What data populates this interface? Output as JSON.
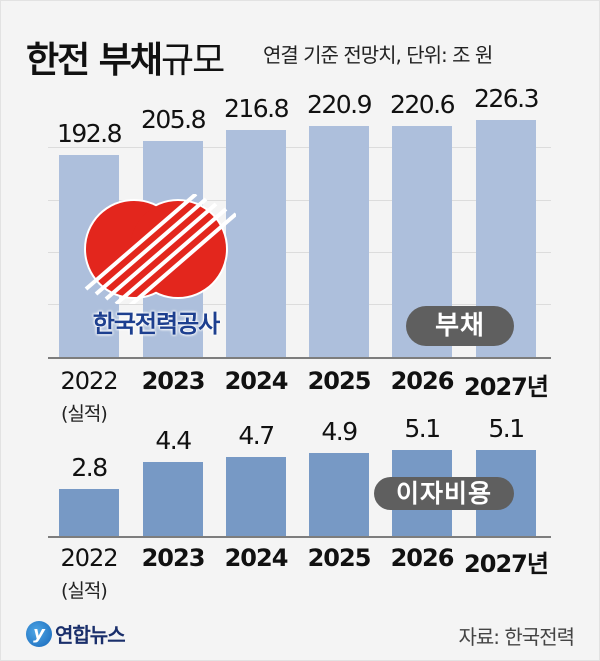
{
  "header": {
    "title_bold": "한전 부채",
    "title_light": "규모",
    "subtitle": "연결 기준 전망치, 단위: 조 원"
  },
  "logo": {
    "kepco_name": "한국전력공사",
    "kepco_colors": {
      "red": "#e3261d",
      "blue": "#1d3f8f"
    }
  },
  "footer": {
    "brand": "연합뉴스",
    "brand_mark": "y",
    "source": "자료: 한국전력"
  },
  "chart_data": [
    {
      "type": "bar",
      "title": "부채",
      "categories": [
        "2022",
        "2023",
        "2024",
        "2025",
        "2026",
        "2027년"
      ],
      "category_notes": {
        "2022": "(실적)"
      },
      "values": [
        192.8,
        205.8,
        216.8,
        220.9,
        220.6,
        226.3
      ],
      "value_labels": [
        "192.8",
        "205.8",
        "216.8",
        "220.9",
        "220.6",
        "226.3"
      ],
      "unit": "조 원",
      "series_label": "부채",
      "color": "#adbfdc",
      "grid": true,
      "legend_position": "inside-right badge"
    },
    {
      "type": "bar",
      "title": "이자비용",
      "categories": [
        "2022",
        "2023",
        "2024",
        "2025",
        "2026",
        "2027년"
      ],
      "category_notes": {
        "2022": "(실적)"
      },
      "values": [
        2.8,
        4.4,
        4.7,
        4.9,
        5.1,
        5.1
      ],
      "value_labels": [
        "2.8",
        "4.4",
        "4.7",
        "4.9",
        "5.1",
        "5.1"
      ],
      "unit": "조 원",
      "series_label": "이자비용",
      "color": "#7799c5",
      "grid": false,
      "legend_position": "inside-right badge"
    }
  ],
  "labels": {
    "actual_note": "(실적)"
  }
}
